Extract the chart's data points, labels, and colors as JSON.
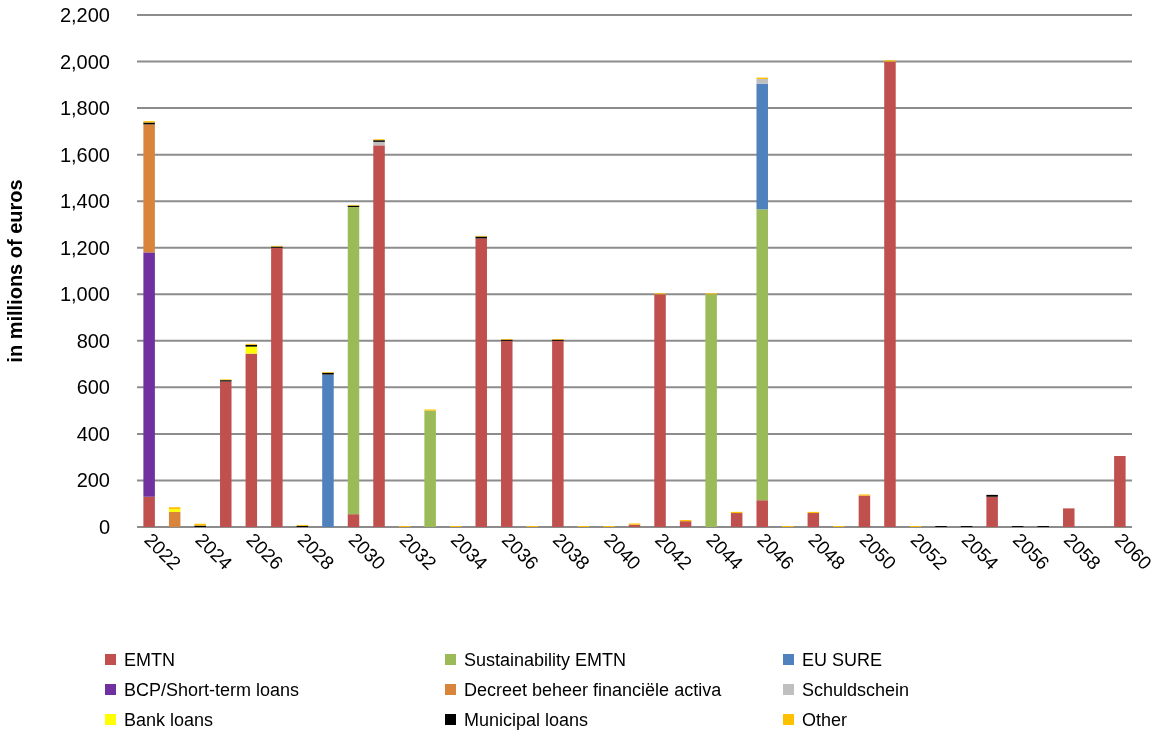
{
  "chart_data": {
    "type": "bar",
    "stacked": true,
    "ylabel": "in millions of euros",
    "categories": [
      "2022",
      null,
      "2024",
      null,
      "2026",
      null,
      "2028",
      null,
      "2030",
      null,
      "2032",
      null,
      "2034",
      null,
      "2036",
      null,
      "2038",
      null,
      "2040",
      null,
      "2042",
      null,
      "2044",
      null,
      "2046",
      null,
      "2048",
      null,
      "2050",
      null,
      "2052",
      null,
      "2054",
      null,
      "2056",
      null,
      "2058",
      null,
      "2060"
    ],
    "ylim": [
      0,
      2200
    ],
    "yticks": [
      0,
      200,
      400,
      600,
      800,
      {
        "value": 1000,
        "label": "1,000"
      },
      {
        "value": 1200,
        "label": "1,200"
      },
      {
        "value": 1400,
        "label": "1,400"
      },
      {
        "value": 1600,
        "label": "1,600"
      },
      {
        "value": 1800,
        "label": "1,800"
      },
      {
        "value": 2000,
        "label": "2,000"
      },
      {
        "value": 2200,
        "label": "2,200"
      }
    ],
    "grid": "y",
    "legend": "bottom",
    "series": [
      {
        "name": "EMTN",
        "color": "#c0504d",
        "values": [
          130,
          null,
          null,
          625,
          745,
          1200,
          null,
          null,
          55,
          1640,
          null,
          null,
          null,
          1240,
          800,
          null,
          800,
          null,
          null,
          10,
          1000,
          25,
          null,
          60,
          115,
          null,
          60,
          null,
          135,
          2000,
          null,
          null,
          null,
          130,
          null,
          null,
          80,
          null,
          305
        ]
      },
      {
        "name": "Sustainability EMTN",
        "color": "#9bbb59",
        "values": [
          null,
          null,
          null,
          null,
          null,
          null,
          null,
          null,
          1320,
          null,
          null,
          500,
          null,
          null,
          null,
          null,
          null,
          null,
          null,
          null,
          null,
          null,
          1000,
          null,
          1250,
          null,
          null,
          null,
          null,
          null,
          null,
          null,
          null,
          null,
          null,
          null,
          null,
          null,
          null
        ]
      },
      {
        "name": "EU SURE",
        "color": "#4f81bd",
        "values": [
          null,
          null,
          null,
          null,
          null,
          null,
          null,
          655,
          null,
          null,
          null,
          null,
          null,
          null,
          null,
          null,
          null,
          null,
          null,
          null,
          null,
          null,
          null,
          null,
          540,
          null,
          null,
          null,
          null,
          null,
          null,
          null,
          null,
          null,
          null,
          null,
          null,
          null,
          null
        ]
      },
      {
        "name": "BCP/Short-term loans",
        "color": "#7030a0",
        "values": [
          1050,
          null,
          null,
          null,
          null,
          null,
          null,
          null,
          null,
          null,
          null,
          null,
          null,
          null,
          null,
          null,
          null,
          null,
          null,
          null,
          null,
          null,
          null,
          null,
          null,
          null,
          null,
          null,
          null,
          null,
          null,
          null,
          null,
          null,
          null,
          null,
          null,
          null,
          null
        ]
      },
      {
        "name": "Decreet beheer financiële activa",
        "color": "#d9843b",
        "values": [
          550,
          65,
          null,
          null,
          null,
          null,
          null,
          null,
          null,
          null,
          null,
          null,
          null,
          null,
          null,
          null,
          null,
          null,
          null,
          null,
          null,
          null,
          null,
          null,
          null,
          null,
          null,
          null,
          null,
          null,
          null,
          null,
          null,
          null,
          null,
          null,
          null,
          null,
          null
        ]
      },
      {
        "name": "Schuldschein",
        "color": "#bfbfbf",
        "values": [
          null,
          null,
          null,
          null,
          null,
          null,
          null,
          null,
          null,
          15,
          null,
          null,
          null,
          null,
          null,
          null,
          null,
          null,
          null,
          null,
          null,
          null,
          null,
          null,
          20,
          null,
          null,
          null,
          null,
          null,
          null,
          null,
          null,
          null,
          null,
          null,
          null,
          null,
          null
        ]
      },
      {
        "name": "Bank loans",
        "color": "#ffff00",
        "values": [
          null,
          12,
          null,
          null,
          30,
          null,
          null,
          null,
          null,
          null,
          null,
          null,
          null,
          null,
          null,
          null,
          null,
          null,
          null,
          null,
          null,
          null,
          null,
          null,
          null,
          null,
          null,
          null,
          null,
          null,
          null,
          null,
          null,
          null,
          null,
          null,
          null,
          null,
          null
        ]
      },
      {
        "name": "Municipal loans",
        "color": "#000000",
        "values": [
          8,
          null,
          6,
          6,
          8,
          5,
          5,
          8,
          6,
          7,
          null,
          null,
          null,
          8,
          5,
          null,
          5,
          null,
          null,
          null,
          null,
          null,
          null,
          null,
          null,
          null,
          null,
          null,
          null,
          null,
          null,
          4,
          4,
          8,
          4,
          4,
          null,
          null,
          null
        ]
      },
      {
        "name": "Other",
        "color": "#ffc000",
        "values": [
          6,
          8,
          8,
          3,
          4,
          3,
          4,
          3,
          3,
          4,
          4,
          5,
          4,
          3,
          3,
          4,
          3,
          4,
          4,
          5,
          4,
          5,
          4,
          5,
          6,
          4,
          5,
          4,
          5,
          5,
          4,
          null,
          null,
          null,
          null,
          null,
          null,
          null,
          null
        ]
      }
    ]
  }
}
